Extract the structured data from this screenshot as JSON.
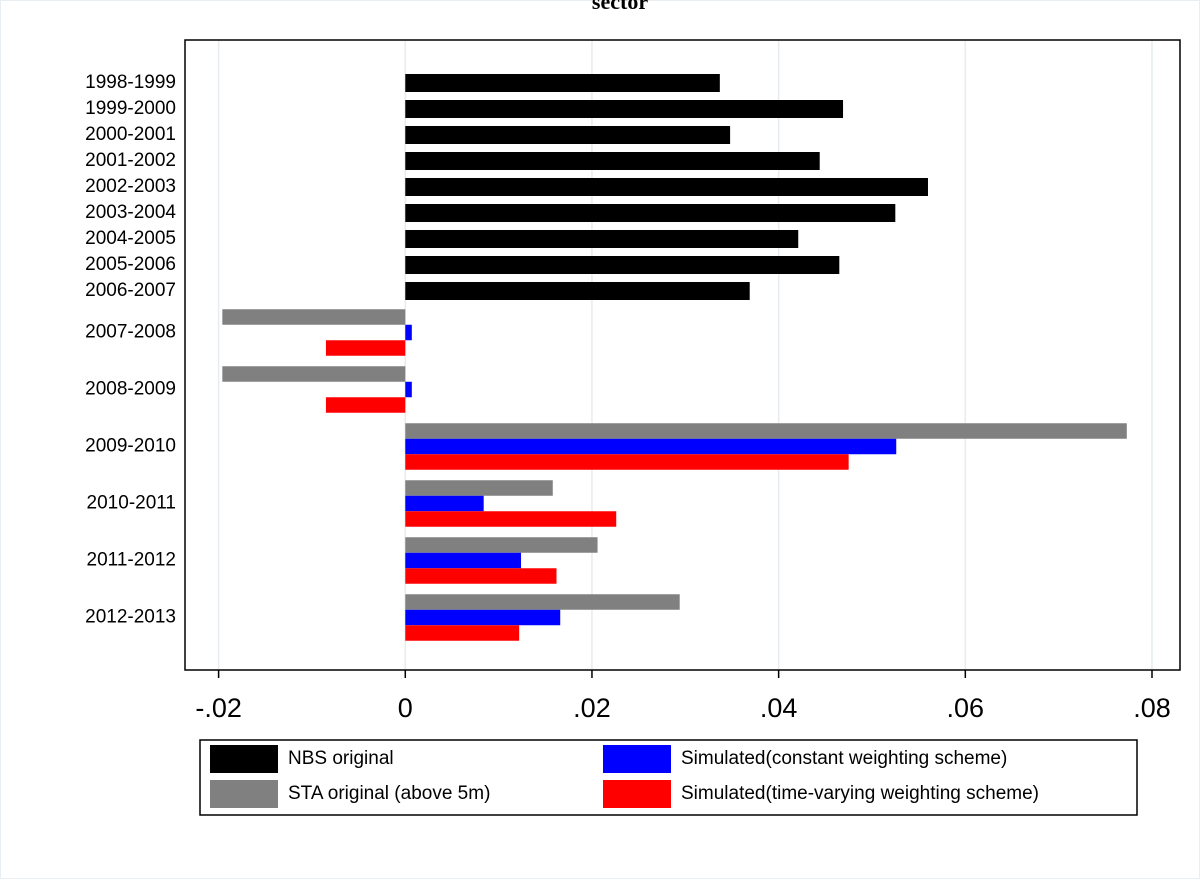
{
  "chart_data": {
    "type": "hbar",
    "title": "sector",
    "categories": [
      "1998-1999",
      "1999-2000",
      "2000-2001",
      "2001-2002",
      "2002-2003",
      "2003-2004",
      "2004-2005",
      "2005-2006",
      "2006-2007",
      "2007-2008",
      "2008-2009",
      "2009-2010",
      "2010-2011",
      "2011-2012",
      "2012-2013"
    ],
    "series": [
      {
        "name": "NBS original",
        "color": "#000000",
        "values": [
          0.0337,
          0.0469,
          0.0348,
          0.0444,
          0.056,
          0.0525,
          0.0421,
          0.0465,
          0.0369,
          null,
          null,
          null,
          null,
          null,
          null
        ]
      },
      {
        "name": "STA original (above 5m)",
        "color": "#808080",
        "values": [
          null,
          null,
          null,
          null,
          null,
          null,
          null,
          null,
          null,
          -0.0196,
          -0.0196,
          0.0773,
          0.0158,
          0.0206,
          0.0294
        ]
      },
      {
        "name": "Simulated(constant weighting scheme)",
        "color": "#0000ff",
        "values": [
          null,
          null,
          null,
          null,
          null,
          null,
          null,
          null,
          null,
          0.0007,
          0.0007,
          0.0526,
          0.0084,
          0.0124,
          0.0166
        ]
      },
      {
        "name": "Simulated(time-varying weighting scheme)",
        "color": "#ff0000",
        "values": [
          null,
          null,
          null,
          null,
          null,
          null,
          null,
          null,
          null,
          -0.0085,
          -0.0085,
          0.0475,
          0.0226,
          0.0162,
          0.0122
        ]
      }
    ],
    "xlim": [
      -0.0236,
      0.083
    ],
    "xticks": [
      {
        "value": -0.02,
        "label": "-.02"
      },
      0,
      {
        "value": 0.02,
        "label": ".02"
      },
      {
        "value": 0.04,
        "label": ".04"
      },
      {
        "value": 0.06,
        "label": ".06"
      },
      {
        "value": 0.08,
        "label": ".08"
      }
    ],
    "grid": true
  }
}
